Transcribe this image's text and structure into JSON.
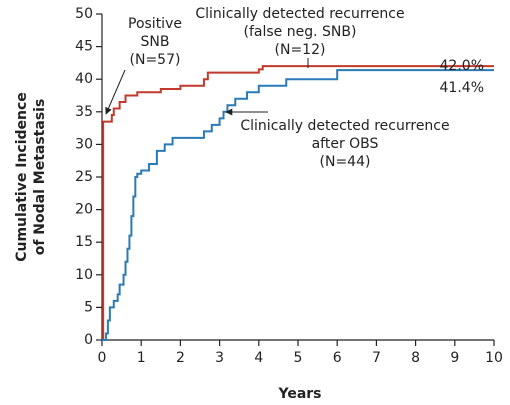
{
  "chart_data": {
    "type": "step",
    "x_label": "Years",
    "y_label": [
      "Cumulative Incidence",
      "of Nodal Metastasis"
    ],
    "series": [
      {
        "color": "#c0392b",
        "x": [
          0,
          0.03,
          0.25,
          0.3,
          0.45,
          0.6,
          0.9,
          1.5,
          2.0,
          2.6,
          2.7,
          4.0,
          4.1,
          10
        ],
        "values": [
          0,
          33.5,
          34.5,
          35.5,
          36.5,
          37.5,
          38,
          38.5,
          39,
          40,
          41,
          41.5,
          42,
          42
        ]
      },
      {
        "color": "#2a7ab8",
        "x": [
          0,
          0.1,
          0.15,
          0.2,
          0.3,
          0.4,
          0.45,
          0.55,
          0.6,
          0.65,
          0.7,
          0.75,
          0.8,
          0.85,
          0.9,
          1.0,
          1.2,
          1.4,
          1.6,
          1.8,
          2.6,
          2.8,
          3.0,
          3.1,
          3.2,
          3.4,
          3.7,
          4.0,
          4.7,
          6.0,
          10
        ],
        "values": [
          0,
          1,
          3,
          5,
          6,
          7,
          8.5,
          10,
          12,
          14,
          16,
          19,
          22,
          25,
          25.5,
          26,
          27,
          29,
          30,
          31,
          32,
          33,
          34,
          35,
          36,
          37,
          38,
          39,
          40,
          41.4,
          41.4
        ]
      }
    ],
    "annotations": [
      [
        "Positive",
        "SNB",
        "(N=57)"
      ],
      [
        "Clinically detected recurrence",
        "(false neg. SNB)",
        "(N=12)"
      ],
      [
        "Clinically detected recurrence",
        "after OBS",
        "(N=44)"
      ],
      [
        "42.0%"
      ],
      [
        "41.4%"
      ]
    ],
    "xlim": [
      0,
      10
    ],
    "xticks": [
      0,
      1,
      2,
      3,
      4,
      5,
      6,
      7,
      8,
      9,
      10
    ],
    "ylim": [
      0,
      50
    ],
    "yticks": [
      0,
      5,
      10,
      15,
      20,
      25,
      30,
      35,
      40,
      45,
      50
    ],
    "step": "post",
    "grid": false
  }
}
